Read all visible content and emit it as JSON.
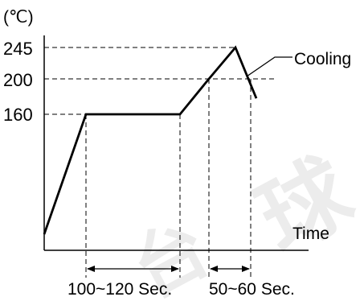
{
  "chart_data": {
    "type": "line",
    "title": "",
    "ylabel": "(℃)",
    "xlabel": "Time",
    "y_ticks": [
      245,
      200,
      160
    ],
    "y_tick_labels": [
      "245",
      "200",
      "160"
    ],
    "series": [
      {
        "name": "",
        "points": [
          {
            "t": 0,
            "temp": 25
          },
          {
            "t": 1,
            "temp": 160
          },
          {
            "t": 2,
            "temp": 160
          },
          {
            "t": 2.6,
            "temp": 200
          },
          {
            "t": 3.4,
            "temp": 245
          },
          {
            "t": 4,
            "temp": 178
          }
        ]
      }
    ],
    "annotations": {
      "cooling": "Cooling",
      "preheat_duration": "100~120 Sec.",
      "reflow_duration": "50~60 Sec."
    },
    "grid": false,
    "line_color": "#000000"
  }
}
